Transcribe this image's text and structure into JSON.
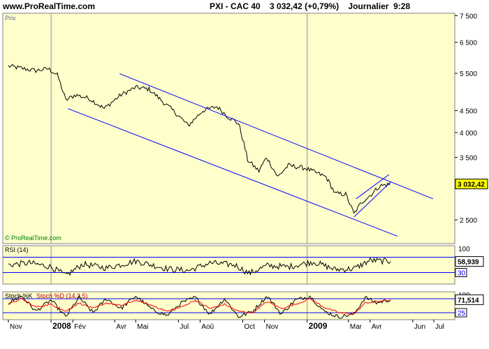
{
  "header": {
    "site": "www.ProRealTime.com",
    "title": "PXI - CAC 40    3 032,42 (+0,79%)    Journalier  9:28"
  },
  "colors": {
    "panel_bg": "#ffffcc",
    "price_line": "#000000",
    "channel": "#0000ff",
    "rsi_bands": "#0000ff",
    "stoch_d": "#ff0000",
    "last_price_box": "#ffff00"
  },
  "chart_data": [
    {
      "type": "line",
      "panel": "price",
      "title": "Prix",
      "watermark": "© ProRealTime.com",
      "y_scale": "log",
      "ylim": [
        2200,
        7600
      ],
      "y_ticks": [
        2500,
        3500,
        4000,
        4500,
        5500,
        6500,
        7500
      ],
      "y_tick_labels": [
        "2 500",
        "3 500",
        "4 000",
        "4 500",
        "5 500",
        "6 500",
        "7 500"
      ],
      "last_value_label": "3 032,42",
      "last_value": 3032.42,
      "x_ticks": [
        "Nov",
        "2008",
        "Fév",
        "Avr",
        "Mai",
        "Jul",
        "Aoû",
        "Oct",
        "Nov",
        "2009",
        "Mar",
        "Avr",
        "Jun",
        "Jul"
      ],
      "x": [
        "2007-11-01",
        "2007-11-20",
        "2007-12-10",
        "2007-12-28",
        "2008-01-10",
        "2008-01-22",
        "2008-02-05",
        "2008-02-25",
        "2008-03-17",
        "2008-04-10",
        "2008-05-01",
        "2008-05-20",
        "2008-06-10",
        "2008-06-30",
        "2008-07-15",
        "2008-08-05",
        "2008-08-25",
        "2008-09-10",
        "2008-09-25",
        "2008-10-08",
        "2008-10-24",
        "2008-11-04",
        "2008-11-20",
        "2008-12-05",
        "2008-12-30",
        "2009-01-14",
        "2009-01-28",
        "2009-02-10",
        "2009-02-25",
        "2009-03-09",
        "2009-03-20",
        "2009-04-01",
        "2009-04-15",
        "2009-04-30"
      ],
      "series": [
        {
          "values": [
            5720,
            5650,
            5580,
            5640,
            5450,
            4760,
            4900,
            4800,
            4550,
            4900,
            5100,
            5050,
            4700,
            4400,
            4150,
            4500,
            4600,
            4350,
            4200,
            3450,
            3250,
            3500,
            3150,
            3350,
            3300,
            3220,
            3150,
            2880,
            2870,
            2580,
            2750,
            2850,
            3000,
            3032
          ]
        }
      ],
      "annotations": [
        {
          "type": "channel-upper",
          "from": [
            "2008-04-08",
            5490
          ],
          "to": [
            "2009-06-30",
            2800
          ]
        },
        {
          "type": "channel-lower",
          "from": [
            "2008-01-25",
            4550
          ],
          "to": [
            "2009-05-10",
            2290
          ]
        },
        {
          "type": "support",
          "from": [
            "2009-03-09",
            2540
          ],
          "to": [
            "2009-05-01",
            3070
          ]
        },
        {
          "type": "resistance",
          "from": [
            "2009-03-12",
            2800
          ],
          "to": [
            "2009-04-28",
            3190
          ]
        }
      ]
    },
    {
      "type": "line",
      "panel": "rsi",
      "title": "RSI (14)",
      "ylim": [
        0,
        100
      ],
      "levels": [
        30,
        70
      ],
      "y_tick_labels": [
        "100",
        "30"
      ],
      "last_value_label": "58,939",
      "last_value": 58.939,
      "x": [
        "2007-11-01",
        "2007-12-01",
        "2008-01-01",
        "2008-01-22",
        "2008-02-15",
        "2008-03-20",
        "2008-05-01",
        "2008-06-15",
        "2008-07-15",
        "2008-08-15",
        "2008-09-20",
        "2008-10-10",
        "2008-11-05",
        "2008-12-05",
        "2009-01-10",
        "2009-02-10",
        "2009-03-09",
        "2009-04-01",
        "2009-04-30"
      ],
      "series": [
        {
          "values": [
            50,
            55,
            45,
            22,
            52,
            42,
            60,
            40,
            35,
            55,
            50,
            28,
            48,
            45,
            58,
            38,
            40,
            62,
            59
          ]
        }
      ]
    },
    {
      "type": "line",
      "panel": "stochastic",
      "title_k": "Stoch %K",
      "title_d": "Stoch %D (14,3,5)",
      "ylim": [
        0,
        100
      ],
      "levels": [
        25,
        75
      ],
      "y_tick_labels": [
        "100",
        "25"
      ],
      "last_value_label": "71,514",
      "last_value": 71.514,
      "x": [
        "2007-11-01",
        "2007-11-20",
        "2007-12-10",
        "2008-01-01",
        "2008-01-22",
        "2008-02-10",
        "2008-03-01",
        "2008-03-20",
        "2008-04-10",
        "2008-05-01",
        "2008-05-25",
        "2008-06-15",
        "2008-07-05",
        "2008-07-25",
        "2008-08-15",
        "2008-09-05",
        "2008-09-25",
        "2008-10-15",
        "2008-11-05",
        "2008-11-25",
        "2008-12-15",
        "2009-01-05",
        "2009-01-25",
        "2009-02-15",
        "2009-03-09",
        "2009-03-25",
        "2009-04-10",
        "2009-04-30"
      ],
      "series": [
        {
          "name": "Stoch %K",
          "values": [
            60,
            85,
            30,
            70,
            10,
            80,
            25,
            75,
            40,
            85,
            35,
            15,
            60,
            80,
            20,
            75,
            10,
            30,
            85,
            20,
            70,
            85,
            30,
            10,
            20,
            80,
            60,
            72
          ]
        },
        {
          "name": "Stoch %D (14,3,5)",
          "values": [
            55,
            75,
            45,
            55,
            30,
            60,
            40,
            60,
            50,
            70,
            50,
            30,
            45,
            70,
            40,
            55,
            30,
            25,
            65,
            40,
            55,
            75,
            45,
            25,
            20,
            60,
            65,
            70
          ]
        }
      ]
    }
  ]
}
